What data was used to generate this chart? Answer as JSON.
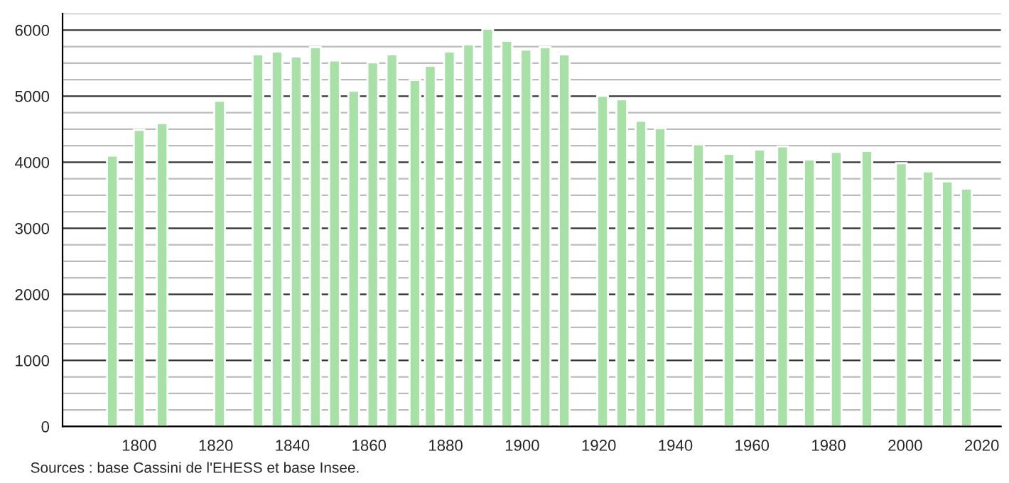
{
  "chart_data": {
    "type": "bar",
    "x": [
      1793,
      1800,
      1806,
      1821,
      1831,
      1836,
      1841,
      1846,
      1851,
      1856,
      1861,
      1866,
      1872,
      1876,
      1881,
      1886,
      1891,
      1896,
      1901,
      1906,
      1911,
      1921,
      1926,
      1931,
      1936,
      1946,
      1954,
      1962,
      1968,
      1975,
      1982,
      1990,
      1999,
      2006,
      2011,
      2016
    ],
    "values": [
      4100,
      4490,
      4590,
      4930,
      5630,
      5675,
      5600,
      5740,
      5540,
      5080,
      5510,
      5630,
      5245,
      5460,
      5675,
      5785,
      6020,
      5835,
      5705,
      5740,
      5630,
      5005,
      4950,
      4625,
      4515,
      4270,
      4125,
      4190,
      4240,
      4040,
      4155,
      4170,
      3985,
      3860,
      3710,
      3600
    ],
    "color": "#a8e0a8",
    "xlim": [
      1780,
      2025
    ],
    "xticks": [
      1800,
      1820,
      1840,
      1860,
      1880,
      1900,
      1920,
      1940,
      1960,
      1980,
      2000,
      2020
    ],
    "ylim": [
      0,
      6250
    ],
    "yticks": [
      0,
      {
        "value": 250,
        "label": null
      },
      {
        "value": 500,
        "label": null
      },
      {
        "value": 750,
        "label": null
      },
      1000,
      {
        "value": 1250,
        "label": null
      },
      {
        "value": 1500,
        "label": null
      },
      {
        "value": 1750,
        "label": null
      },
      2000,
      {
        "value": 2250,
        "label": null
      },
      {
        "value": 2500,
        "label": null
      },
      {
        "value": 2750,
        "label": null
      },
      3000,
      {
        "value": 3250,
        "label": null
      },
      {
        "value": 3500,
        "label": null
      },
      {
        "value": 3750,
        "label": null
      },
      4000,
      {
        "value": 4250,
        "label": null
      },
      {
        "value": 4500,
        "label": null
      },
      {
        "value": 4750,
        "label": null
      },
      5000,
      {
        "value": 5250,
        "label": null
      },
      {
        "value": 5500,
        "label": null
      },
      {
        "value": 5750,
        "label": null
      },
      6000,
      {
        "value": 6250,
        "label": null
      }
    ],
    "grid": "y",
    "annotations": [
      "Sources : base Cassini de l'EHESS et base Insee."
    ]
  }
}
